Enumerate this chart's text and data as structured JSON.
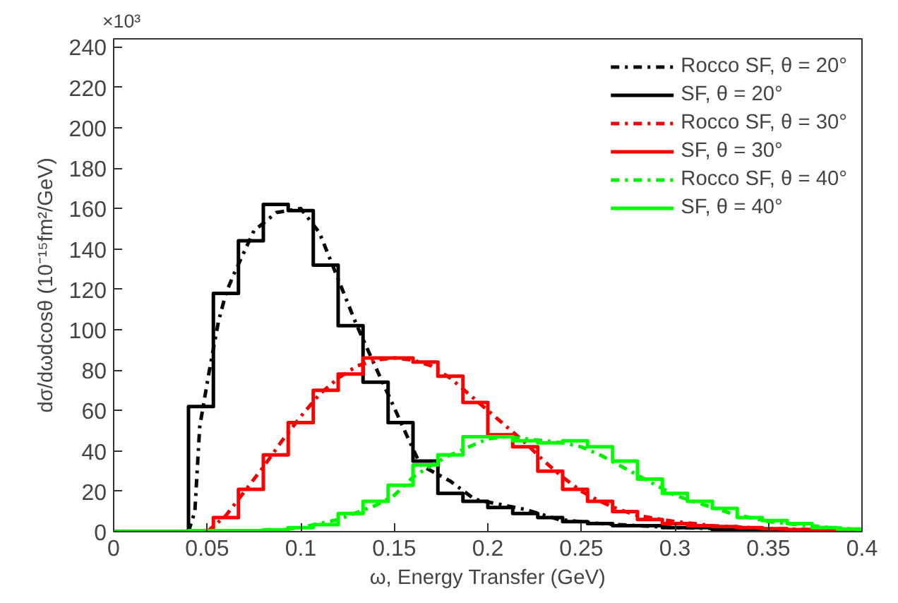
{
  "chart_data": {
    "type": "line",
    "xlabel": "ω, Energy Transfer (GeV)",
    "ylabel": "dσ/dωdcosθ (10⁻¹⁵fm²/GeV)",
    "annotations": [
      "×10³"
    ],
    "bins": [
      0,
      0.0133,
      0.0267,
      0.04,
      0.0533,
      0.0667,
      0.08,
      0.0933,
      0.1067,
      0.12,
      0.1333,
      0.1467,
      0.16,
      0.1733,
      0.1867,
      0.2,
      0.2133,
      0.2267,
      0.24,
      0.2533,
      0.2667,
      0.28,
      0.2933,
      0.3067,
      0.32,
      0.3333,
      0.3467,
      0.36,
      0.3733,
      0.3867,
      0.4
    ],
    "xlim": [
      0,
      0.4
    ],
    "xticks": [
      0,
      0.05,
      0.1,
      0.15,
      0.2,
      0.25,
      0.3,
      0.35,
      0.4
    ],
    "ylim": [
      0,
      244
    ],
    "yticks": [
      0,
      20,
      40,
      60,
      80,
      100,
      120,
      140,
      160,
      180,
      200,
      220,
      240
    ],
    "grid": false,
    "legend": "top right",
    "series": [
      {
        "name": "Rocco SF, θ = 20°",
        "line_style": "dashdot",
        "color": "#0a0a0a",
        "x": [
          0.04,
          0.0434,
          0.046,
          0.051,
          0.056,
          0.06,
          0.064,
          0.07,
          0.075,
          0.087,
          0.1,
          0.11,
          0.12,
          0.13,
          0.1427,
          0.1477,
          0.157,
          0.164,
          0.18,
          0.193,
          0.22,
          0.238,
          0.26,
          0.3,
          0.35,
          0.4
        ],
        "values": [
          0,
          10,
          52,
          79,
          104,
          118,
          127,
          139,
          149,
          158,
          160,
          148,
          125,
          102,
          76,
          66,
          47,
          33,
          25,
          16,
          11,
          6,
          4,
          2,
          1,
          0.5
        ]
      },
      {
        "name": "SF, θ = 20°",
        "type": "histogram",
        "line_style": "solid",
        "color": "#000000",
        "values": [
          0,
          0,
          0,
          62,
          118,
          144,
          162,
          159,
          132,
          102,
          74,
          54,
          35,
          19,
          15,
          12,
          9,
          7,
          5,
          4,
          3,
          3,
          2,
          2,
          1,
          1,
          1,
          1,
          0.5,
          0.5
        ]
      },
      {
        "name": "Rocco SF, θ = 30°",
        "line_style": "dashdot",
        "color": "#f00000",
        "x": [
          0.05,
          0.06,
          0.07,
          0.08,
          0.09,
          0.1,
          0.11,
          0.12,
          0.13,
          0.14,
          0.15,
          0.16,
          0.17,
          0.18,
          0.19,
          0.2,
          0.21,
          0.22,
          0.23,
          0.24,
          0.25,
          0.26,
          0.27,
          0.28,
          0.3,
          0.32,
          0.35,
          0.4
        ],
        "values": [
          0,
          8,
          20,
          32,
          45,
          57,
          68,
          76,
          82,
          85,
          86,
          85,
          82,
          76,
          68,
          60,
          52,
          44,
          35,
          27,
          20,
          15,
          11,
          8,
          5,
          3,
          1.5,
          0.5
        ]
      },
      {
        "name": "SF, θ = 30°",
        "type": "histogram",
        "line_style": "solid",
        "color": "#ff0000",
        "values": [
          0,
          0,
          0,
          0,
          7,
          21,
          38,
          54,
          70,
          78,
          86,
          86,
          84,
          77,
          64,
          48,
          42,
          30,
          21,
          15,
          10,
          6,
          4,
          3,
          2.5,
          2,
          1.5,
          1,
          1,
          0.5
        ]
      },
      {
        "name": "Rocco SF, θ = 40°",
        "line_style": "dashdot",
        "color": "#00f000",
        "x": [
          0.08,
          0.1,
          0.12,
          0.14,
          0.15,
          0.16,
          0.17,
          0.18,
          0.19,
          0.2,
          0.21,
          0.22,
          0.23,
          0.24,
          0.25,
          0.26,
          0.27,
          0.28,
          0.29,
          0.3,
          0.31,
          0.32,
          0.33,
          0.34,
          0.35,
          0.37,
          0.4
        ],
        "values": [
          0,
          2,
          6,
          13,
          18,
          27,
          33,
          38,
          42,
          46,
          47,
          46,
          45,
          44,
          42,
          38,
          33,
          28,
          23,
          18,
          15,
          12,
          9,
          7,
          5,
          3,
          1
        ]
      },
      {
        "name": "SF, θ = 40°",
        "type": "histogram",
        "line_style": "solid",
        "color": "#00ff00",
        "values": [
          0,
          0,
          0,
          0.5,
          0.5,
          0.5,
          1,
          2,
          3.5,
          9,
          15,
          23,
          33,
          38,
          47,
          47,
          45,
          44,
          45,
          42,
          35,
          26,
          19,
          15,
          11.5,
          7,
          5.5,
          4,
          2,
          1.3
        ]
      }
    ]
  }
}
